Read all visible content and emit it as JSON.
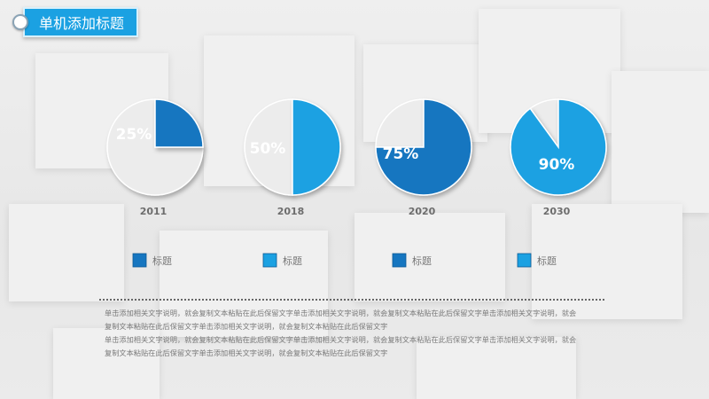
{
  "title": "单机添加标题",
  "colors": {
    "dark": "#1676c0",
    "light": "#1ba1e2",
    "rest": "#ececec",
    "text": "#6d6d6d"
  },
  "chart_data": [
    {
      "type": "pie",
      "category": "2011",
      "value": 25,
      "label": "25%",
      "color": "#1676c0"
    },
    {
      "type": "pie",
      "category": "2018",
      "value": 50,
      "label": "50%",
      "color": "#1ba1e2"
    },
    {
      "type": "pie",
      "category": "2020",
      "value": 75,
      "label": "75%",
      "color": "#1676c0"
    },
    {
      "type": "pie",
      "category": "2030",
      "value": 90,
      "label": "90%",
      "color": "#1ba1e2"
    }
  ],
  "legend": [
    {
      "label": "标题",
      "color": "#1676c0"
    },
    {
      "label": "标题",
      "color": "#1ba1e2"
    },
    {
      "label": "标题",
      "color": "#1676c0"
    },
    {
      "label": "标题",
      "color": "#1ba1e2"
    }
  ],
  "description": [
    "单击添加相关文字说明，就会复制文本粘贴在此后保留文字单击添加相关文字说明，就会复制文本粘贴在此后保留文字单击添加相关文字说明，就会",
    "复制文本粘贴在此后保留文字单击添加相关文字说明，就会复制文本粘贴在此后保留文字",
    "单击添加相关文字说明，就会复制文本粘贴在此后保留文字单击添加相关文字说明，就会复制文本粘贴在此后保留文字单击添加相关文字说明，就会",
    "复制文本粘贴在此后保留文字单击添加相关文字说明，就会复制文本粘贴在此后保留文字"
  ]
}
